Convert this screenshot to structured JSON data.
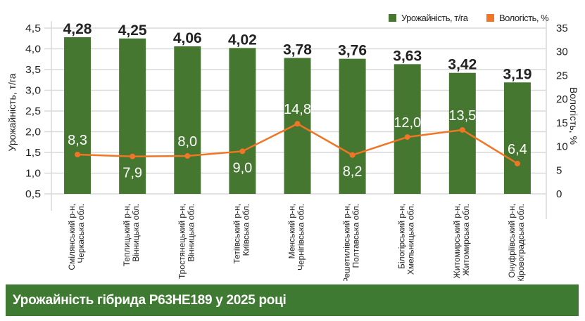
{
  "chart_data": {
    "type": "bar+line",
    "title": "Урожайність гібрида Р63НЕ189 у 2025 році",
    "categories": [
      [
        "Смілянський р-н,",
        "Черкаська обл."
      ],
      [
        "Теплицький р-н,",
        "Вінницька обл."
      ],
      [
        "Тростянецький р-н,",
        "Вінницька обл."
      ],
      [
        "Тетіївський р-н,",
        "Київська обл."
      ],
      [
        "Менський р-н,",
        "Чернігівська обл."
      ],
      [
        "Решетилівський р-н,",
        "Полтавська обл."
      ],
      [
        "Білогірський р-н,",
        "Хмельницька обл."
      ],
      [
        "Житомирський р-н,",
        "Житомирська обл."
      ],
      [
        "Онуфріївський р-н,",
        "Кіровоградська обл."
      ]
    ],
    "series": [
      {
        "name": "Урожайність, т/га",
        "type": "bar",
        "axis": "left",
        "color": "#457731",
        "values": [
          4.28,
          4.25,
          4.06,
          4.02,
          3.78,
          3.76,
          3.63,
          3.42,
          3.19
        ],
        "labels": [
          "4,28",
          "4,25",
          "4,06",
          "4,02",
          "3,78",
          "3,76",
          "3,63",
          "3,42",
          "3,19"
        ]
      },
      {
        "name": "Вологість, %",
        "type": "line",
        "axis": "right",
        "color": "#f07524",
        "values": [
          8.3,
          7.9,
          8.0,
          9.0,
          14.8,
          8.2,
          12.0,
          13.5,
          6.4
        ],
        "labels": [
          "8,3",
          "7,9",
          "8,0",
          "9,0",
          "14,8",
          "8,2",
          "12,0",
          "13,5",
          "6,4"
        ]
      }
    ],
    "ylabel": "Урожайність, т/га",
    "ylim": [
      0.5,
      4.5
    ],
    "yticks": [
      "0,5",
      "1,0",
      "1,5",
      "2,0",
      "2,5",
      "3,0",
      "3,5",
      "4,0",
      "4,5"
    ],
    "y2label": "Вологість, %",
    "y2lim": [
      0,
      35
    ],
    "y2ticks": [
      "0",
      "5",
      "10",
      "15",
      "20",
      "25",
      "30",
      "35"
    ],
    "grid": true,
    "legend": "top-right"
  }
}
